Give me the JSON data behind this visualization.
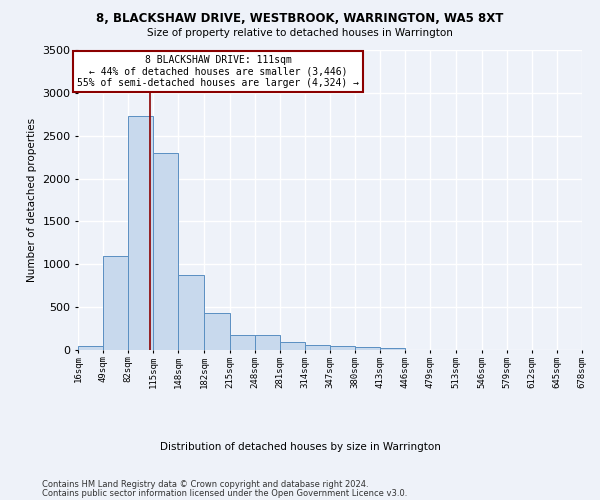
{
  "title1": "8, BLACKSHAW DRIVE, WESTBROOK, WARRINGTON, WA5 8XT",
  "title2": "Size of property relative to detached houses in Warrington",
  "xlabel": "Distribution of detached houses by size in Warrington",
  "ylabel": "Number of detached properties",
  "footer1": "Contains HM Land Registry data © Crown copyright and database right 2024.",
  "footer2": "Contains public sector information licensed under the Open Government Licence v3.0.",
  "annotation_line1": "8 BLACKSHAW DRIVE: 111sqm",
  "annotation_line2": "← 44% of detached houses are smaller (3,446)",
  "annotation_line3": "55% of semi-detached houses are larger (4,324) →",
  "property_size": 111,
  "bar_values": [
    50,
    1100,
    2730,
    2300,
    880,
    430,
    175,
    175,
    95,
    60,
    50,
    30,
    20,
    0,
    0,
    0,
    0,
    0,
    0,
    0
  ],
  "bin_edges": [
    16,
    49,
    82,
    115,
    148,
    182,
    215,
    248,
    281,
    314,
    347,
    380,
    413,
    446,
    479,
    513,
    546,
    579,
    612,
    645,
    678
  ],
  "bar_color": "#c8d9ed",
  "bar_edge_color": "#5a8fc2",
  "vline_color": "#8b0000",
  "vline_x": 111,
  "annotation_box_color": "#8b0000",
  "background_color": "#eef2f9",
  "grid_color": "#ffffff",
  "ylim": [
    0,
    3500
  ],
  "yticks": [
    0,
    500,
    1000,
    1500,
    2000,
    2500,
    3000,
    3500
  ]
}
